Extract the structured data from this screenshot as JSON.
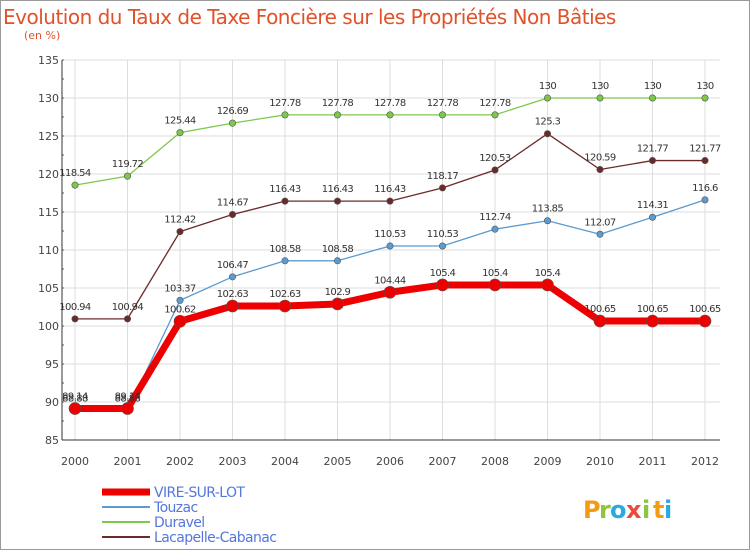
{
  "header": {
    "title": "Evolution du Taux de Taxe Foncière sur les Propriétés Non Bâties",
    "unit": "(en %)"
  },
  "logo": {
    "text": "Proxiti",
    "letters": [
      "P",
      "r",
      "o",
      "x",
      "i",
      "t",
      "i"
    ]
  },
  "chart_data": {
    "type": "line",
    "title": "Evolution du Taux de Taxe Foncière sur les Propriétés Non Bâties",
    "ylabel": "(en %)",
    "xlabel": "",
    "ylim": [
      85,
      135
    ],
    "yticks": [
      85,
      90,
      95,
      100,
      105,
      110,
      115,
      120,
      125,
      130,
      135
    ],
    "categories": [
      "2000",
      "2001",
      "2002",
      "2003",
      "2004",
      "2005",
      "2006",
      "2007",
      "2008",
      "2009",
      "2010",
      "2011",
      "2012"
    ],
    "grid": true,
    "legend": "bottom-left",
    "series": [
      {
        "name": "Duravel",
        "color": "#7cc84a",
        "width": 1.3,
        "marker": 3.2,
        "values": [
          118.54,
          119.72,
          125.44,
          126.69,
          127.78,
          127.78,
          127.78,
          127.78,
          127.78,
          130,
          130,
          130,
          130
        ],
        "labels": [
          "118.54",
          "119.72",
          "125.44",
          "126.69",
          "127.78",
          "127.78",
          "127.78",
          "127.78",
          "127.78",
          "130",
          "130",
          "130",
          "130"
        ]
      },
      {
        "name": "Lacapelle-Cabanac",
        "color": "#6b2a2a",
        "width": 1.3,
        "marker": 3.2,
        "values": [
          100.94,
          100.94,
          112.42,
          114.67,
          116.43,
          116.43,
          116.43,
          118.17,
          120.53,
          125.3,
          120.59,
          121.77,
          121.77
        ],
        "labels": [
          "100.94",
          "100.94",
          "112.42",
          "114.67",
          "116.43",
          "116.43",
          "116.43",
          "118.17",
          "120.53",
          "125.3",
          "120.59",
          "121.77",
          "121.77"
        ]
      },
      {
        "name": "Touzac",
        "color": "#5b9bd0",
        "width": 1.3,
        "marker": 3.2,
        "values": [
          88.88,
          88.88,
          103.37,
          106.47,
          108.58,
          108.58,
          110.53,
          110.53,
          112.74,
          113.85,
          112.07,
          114.31,
          116.6
        ],
        "labels": [
          "88.88",
          "88.88",
          "103.37",
          "106.47",
          "108.58",
          "108.58",
          "110.53",
          "110.53",
          "112.74",
          "113.85",
          "112.07",
          "114.31",
          "116.6"
        ]
      },
      {
        "name": "VIRE-SUR-LOT",
        "color": "#ee0000",
        "width": 7,
        "marker": 6,
        "values": [
          89.14,
          89.14,
          100.62,
          102.63,
          102.63,
          102.9,
          104.44,
          105.4,
          105.4,
          105.4,
          100.65,
          100.65,
          100.65
        ],
        "labels": [
          "89.14",
          "89.14",
          "100.62",
          "102.63",
          "102.63",
          "102.9",
          "104.44",
          "105.4",
          "105.4",
          "105.4",
          "100.65",
          "100.65",
          "100.65"
        ]
      }
    ],
    "legend_items": [
      {
        "name": "VIRE-SUR-LOT",
        "color": "#ee0000",
        "text_color": "#5577dd",
        "width": 7
      },
      {
        "name": "Touzac",
        "color": "#5b9bd0",
        "text_color": "#5577dd",
        "width": 2
      },
      {
        "name": "Duravel",
        "color": "#7cc84a",
        "text_color": "#5577dd",
        "width": 2
      },
      {
        "name": "Lacapelle-Cabanac",
        "color": "#6b2a2a",
        "text_color": "#5577dd",
        "width": 2
      }
    ]
  }
}
